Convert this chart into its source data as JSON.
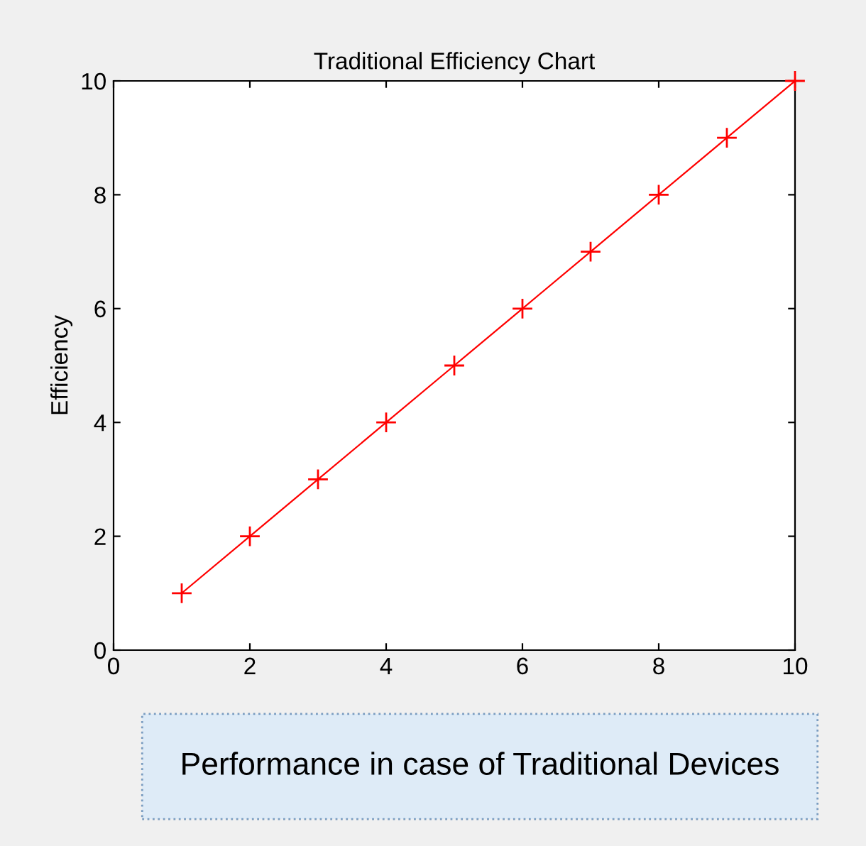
{
  "chart_data": {
    "type": "line",
    "title": "Traditional Efficiency Chart",
    "ylabel": "Efficiency",
    "x": [
      1,
      2,
      3,
      4,
      5,
      6,
      7,
      8,
      9,
      10
    ],
    "series": [
      {
        "color": "#ff0000",
        "values": [
          1,
          2,
          3,
          4,
          5,
          6,
          7,
          8,
          9,
          10
        ]
      }
    ],
    "xlim": [
      0,
      10
    ],
    "ylim": [
      0,
      10
    ],
    "xticks": [
      0,
      2,
      4,
      6,
      8,
      10
    ],
    "yticks": [
      0,
      2,
      4,
      6,
      8,
      10
    ],
    "marker": "cross",
    "line_style": "solid",
    "grid": false,
    "legend": false,
    "annotations": [
      "Performance in case of Traditional Devices"
    ]
  }
}
